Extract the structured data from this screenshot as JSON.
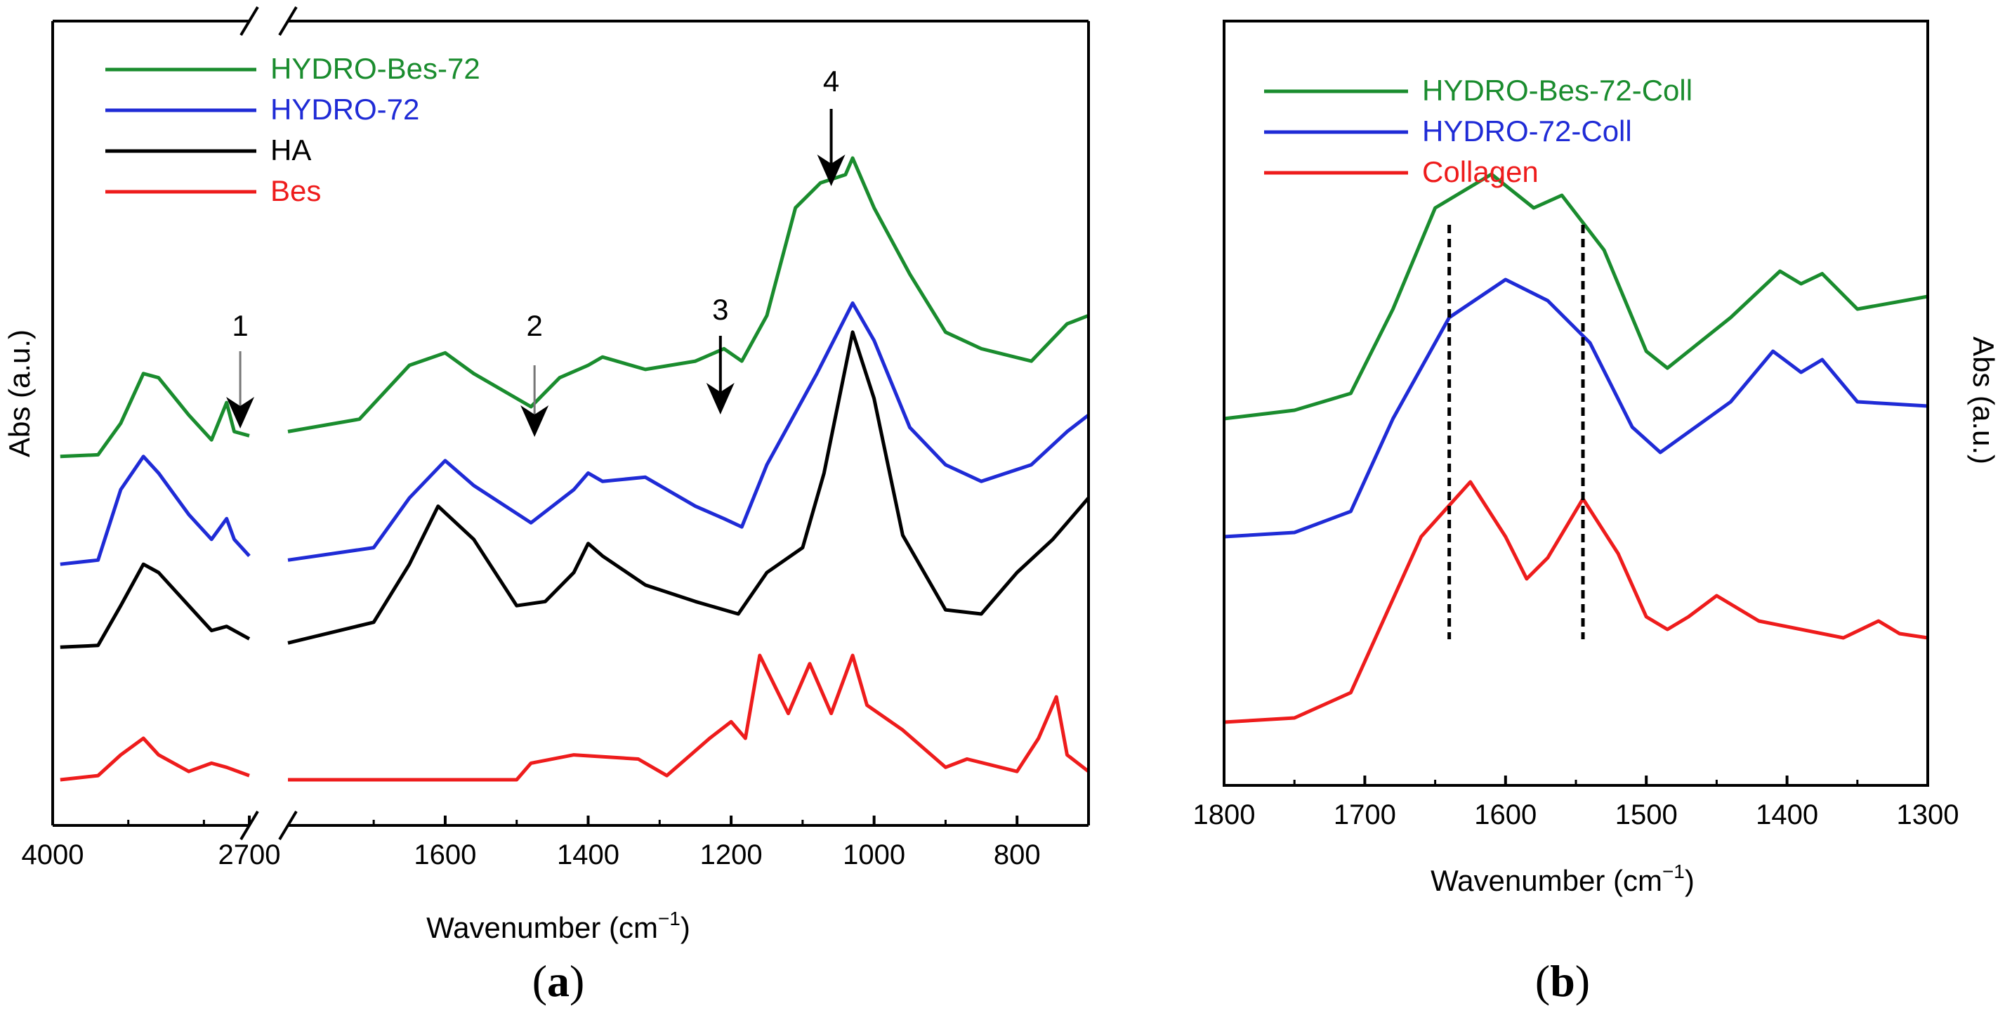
{
  "chart_data": [
    {
      "type": "line",
      "panel_label": "a",
      "xlabel": "Wavenumber (cm",
      "xlabel_sup": "−1",
      "xlabel_close": ")",
      "ylabel": "Abs (a.u.)",
      "x_axis": "reversed with break between 2700 and ~1820",
      "x_segments": [
        [
          4000,
          2700
        ],
        [
          1820,
          700
        ]
      ],
      "xticks": [
        "4000",
        "2700",
        "1600",
        "1400",
        "1200",
        "1000",
        "800"
      ],
      "legend_position": "top-left",
      "legend": [
        {
          "name": "HYDRO-Bes-72",
          "color": "#1a8c2e"
        },
        {
          "name": "HYDRO-72",
          "color": "#1f2bd6"
        },
        {
          "name": "HA",
          "color": "#000000"
        },
        {
          "name": "Bes",
          "color": "#ee1c1c"
        }
      ],
      "annotations": [
        {
          "label": "1",
          "x": 2760
        },
        {
          "label": "2",
          "x": 1475
        },
        {
          "label": "3",
          "x": 1215
        },
        {
          "label": "4",
          "x": 1060
        }
      ],
      "series": [
        {
          "name": "HYDRO-Bes-72",
          "color": "#1a8c2e",
          "offset": 3.9,
          "points": [
            [
              3950,
              0
            ],
            [
              3700,
              0.02
            ],
            [
              3550,
              0.4
            ],
            [
              3400,
              1.0
            ],
            [
              3300,
              0.95
            ],
            [
              3100,
              0.5
            ],
            [
              2950,
              0.2
            ],
            [
              2850,
              0.65
            ],
            [
              2800,
              0.3
            ],
            [
              2700,
              0.25
            ],
            [
              1820,
              0.3
            ],
            [
              1720,
              0.45
            ],
            [
              1650,
              1.1
            ],
            [
              1600,
              1.25
            ],
            [
              1560,
              1.0
            ],
            [
              1480,
              0.6
            ],
            [
              1440,
              0.95
            ],
            [
              1400,
              1.1
            ],
            [
              1380,
              1.2
            ],
            [
              1320,
              1.05
            ],
            [
              1250,
              1.15
            ],
            [
              1210,
              1.3
            ],
            [
              1185,
              1.15
            ],
            [
              1150,
              1.7
            ],
            [
              1110,
              3.0
            ],
            [
              1075,
              3.3
            ],
            [
              1040,
              3.4
            ],
            [
              1030,
              3.6
            ],
            [
              1000,
              3.0
            ],
            [
              950,
              2.2
            ],
            [
              900,
              1.5
            ],
            [
              850,
              1.3
            ],
            [
              780,
              1.15
            ],
            [
              730,
              1.6
            ],
            [
              700,
              1.7
            ]
          ]
        },
        {
          "name": "HYDRO-72",
          "color": "#1f2bd6",
          "offset": 2.6,
          "points": [
            [
              3950,
              0
            ],
            [
              3700,
              0.05
            ],
            [
              3550,
              0.9
            ],
            [
              3400,
              1.3
            ],
            [
              3300,
              1.1
            ],
            [
              3100,
              0.6
            ],
            [
              2950,
              0.3
            ],
            [
              2850,
              0.55
            ],
            [
              2800,
              0.3
            ],
            [
              2700,
              0.1
            ],
            [
              1820,
              0.05
            ],
            [
              1700,
              0.2
            ],
            [
              1650,
              0.8
            ],
            [
              1600,
              1.25
            ],
            [
              1560,
              0.95
            ],
            [
              1480,
              0.5
            ],
            [
              1420,
              0.9
            ],
            [
              1400,
              1.1
            ],
            [
              1380,
              1.0
            ],
            [
              1320,
              1.05
            ],
            [
              1250,
              0.7
            ],
            [
              1210,
              0.55
            ],
            [
              1185,
              0.45
            ],
            [
              1150,
              1.2
            ],
            [
              1080,
              2.3
            ],
            [
              1030,
              3.15
            ],
            [
              1000,
              2.7
            ],
            [
              950,
              1.65
            ],
            [
              900,
              1.2
            ],
            [
              850,
              1.0
            ],
            [
              780,
              1.2
            ],
            [
              730,
              1.6
            ],
            [
              700,
              1.8
            ]
          ]
        },
        {
          "name": "HA",
          "color": "#000000",
          "offset": 1.6,
          "points": [
            [
              3950,
              0
            ],
            [
              3700,
              0.02
            ],
            [
              3550,
              0.5
            ],
            [
              3400,
              1.0
            ],
            [
              3300,
              0.9
            ],
            [
              3100,
              0.5
            ],
            [
              2950,
              0.2
            ],
            [
              2850,
              0.25
            ],
            [
              2700,
              0.1
            ],
            [
              1820,
              0.05
            ],
            [
              1700,
              0.3
            ],
            [
              1650,
              1.0
            ],
            [
              1610,
              1.7
            ],
            [
              1560,
              1.3
            ],
            [
              1500,
              0.5
            ],
            [
              1460,
              0.55
            ],
            [
              1420,
              0.9
            ],
            [
              1400,
              1.25
            ],
            [
              1380,
              1.1
            ],
            [
              1320,
              0.75
            ],
            [
              1250,
              0.55
            ],
            [
              1190,
              0.4
            ],
            [
              1150,
              0.9
            ],
            [
              1100,
              1.2
            ],
            [
              1070,
              2.1
            ],
            [
              1030,
              3.8
            ],
            [
              1000,
              3.0
            ],
            [
              960,
              1.35
            ],
            [
              900,
              0.45
            ],
            [
              850,
              0.4
            ],
            [
              800,
              0.9
            ],
            [
              750,
              1.3
            ],
            [
              700,
              1.8
            ]
          ]
        },
        {
          "name": "Bes",
          "color": "#ee1c1c",
          "offset": 0,
          "points": [
            [
              3950,
              0
            ],
            [
              3700,
              0.05
            ],
            [
              3550,
              0.3
            ],
            [
              3400,
              0.5
            ],
            [
              3300,
              0.3
            ],
            [
              3100,
              0.1
            ],
            [
              2950,
              0.2
            ],
            [
              2850,
              0.15
            ],
            [
              2700,
              0.05
            ],
            [
              1820,
              0
            ],
            [
              1500,
              0
            ],
            [
              1480,
              0.2
            ],
            [
              1420,
              0.3
            ],
            [
              1330,
              0.25
            ],
            [
              1290,
              0.05
            ],
            [
              1230,
              0.5
            ],
            [
              1200,
              0.7
            ],
            [
              1180,
              0.5
            ],
            [
              1160,
              1.5
            ],
            [
              1120,
              0.8
            ],
            [
              1090,
              1.4
            ],
            [
              1060,
              0.8
            ],
            [
              1030,
              1.5
            ],
            [
              1010,
              0.9
            ],
            [
              960,
              0.6
            ],
            [
              900,
              0.15
            ],
            [
              870,
              0.25
            ],
            [
              800,
              0.1
            ],
            [
              770,
              0.5
            ],
            [
              745,
              1.0
            ],
            [
              730,
              0.3
            ],
            [
              700,
              0.1
            ]
          ]
        }
      ]
    },
    {
      "type": "line",
      "panel_label": "b",
      "xlabel": "Wavenumber (cm",
      "xlabel_sup": "−1",
      "xlabel_close": ")",
      "ylabel": "Abs (a.u.)",
      "xlim": [
        1800,
        1300
      ],
      "xticks": [
        "1800",
        "1700",
        "1600",
        "1500",
        "1400",
        "1300"
      ],
      "legend_position": "top-left",
      "legend": [
        {
          "name": "HYDRO-Bes-72-Coll",
          "color": "#1a8c2e"
        },
        {
          "name": "HYDRO-72-Coll",
          "color": "#1f2bd6"
        },
        {
          "name": "Collagen",
          "color": "#ee1c1c"
        }
      ],
      "reference_lines": [
        1640,
        1545
      ],
      "series": [
        {
          "name": "HYDRO-Bes-72-Coll",
          "color": "#1a8c2e",
          "offset": 3.6,
          "points": [
            [
              1800,
              0
            ],
            [
              1750,
              0.1
            ],
            [
              1710,
              0.3
            ],
            [
              1680,
              1.3
            ],
            [
              1650,
              2.5
            ],
            [
              1610,
              2.9
            ],
            [
              1580,
              2.5
            ],
            [
              1560,
              2.65
            ],
            [
              1530,
              2.0
            ],
            [
              1500,
              0.8
            ],
            [
              1485,
              0.6
            ],
            [
              1440,
              1.2
            ],
            [
              1405,
              1.75
            ],
            [
              1390,
              1.6
            ],
            [
              1375,
              1.72
            ],
            [
              1350,
              1.3
            ],
            [
              1300,
              1.45
            ]
          ]
        },
        {
          "name": "HYDRO-72-Coll",
          "color": "#1f2bd6",
          "offset": 2.2,
          "points": [
            [
              1800,
              0
            ],
            [
              1750,
              0.05
            ],
            [
              1710,
              0.3
            ],
            [
              1680,
              1.4
            ],
            [
              1640,
              2.6
            ],
            [
              1600,
              3.05
            ],
            [
              1570,
              2.8
            ],
            [
              1540,
              2.3
            ],
            [
              1510,
              1.3
            ],
            [
              1490,
              1.0
            ],
            [
              1440,
              1.6
            ],
            [
              1410,
              2.2
            ],
            [
              1390,
              1.95
            ],
            [
              1375,
              2.1
            ],
            [
              1350,
              1.6
            ],
            [
              1300,
              1.55
            ]
          ]
        },
        {
          "name": "Collagen",
          "color": "#ee1c1c",
          "offset": 0,
          "points": [
            [
              1800,
              0
            ],
            [
              1750,
              0.05
            ],
            [
              1710,
              0.35
            ],
            [
              1660,
              2.2
            ],
            [
              1625,
              2.85
            ],
            [
              1600,
              2.2
            ],
            [
              1585,
              1.7
            ],
            [
              1570,
              1.95
            ],
            [
              1545,
              2.65
            ],
            [
              1520,
              2.0
            ],
            [
              1500,
              1.25
            ],
            [
              1485,
              1.1
            ],
            [
              1470,
              1.25
            ],
            [
              1450,
              1.5
            ],
            [
              1420,
              1.2
            ],
            [
              1360,
              1.0
            ],
            [
              1335,
              1.2
            ],
            [
              1320,
              1.05
            ],
            [
              1300,
              1.0
            ]
          ]
        }
      ]
    }
  ]
}
